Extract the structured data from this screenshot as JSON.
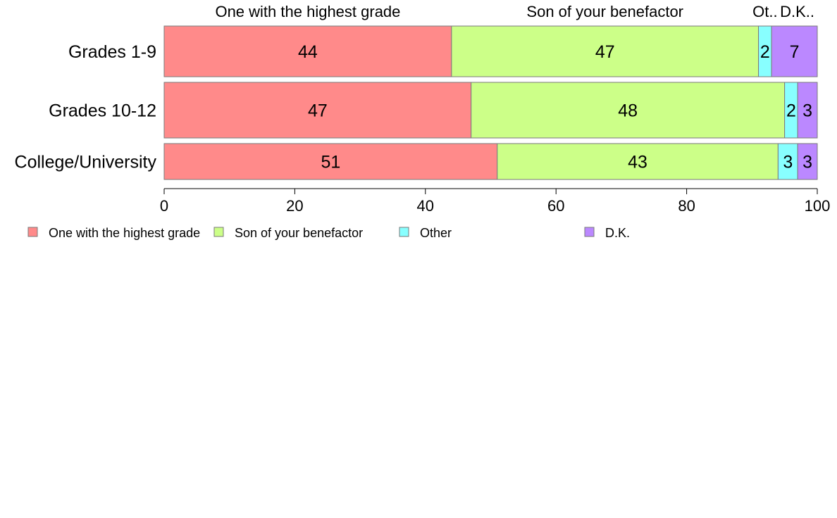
{
  "chart_data": {
    "type": "bar",
    "orientation": "horizontal",
    "stacked": true,
    "categories": [
      "Grades 1-9",
      "Grades 10-12",
      "College/University"
    ],
    "series": [
      {
        "name": "One with the highest grade",
        "top_label": "One with the highest grade",
        "color": "#FF8A8A",
        "values": [
          44,
          47,
          51
        ]
      },
      {
        "name": "Son of your benefactor",
        "top_label": "Son of your benefactor",
        "color": "#CCFF88",
        "values": [
          47,
          48,
          43
        ]
      },
      {
        "name": "Other",
        "top_label": "Ot..",
        "color": "#88FFFF",
        "values": [
          2,
          2,
          3
        ]
      },
      {
        "name": "D.K.",
        "top_label": "D.K..",
        "color": "#BB88FF",
        "values": [
          7,
          3,
          3
        ]
      }
    ],
    "xlim": [
      0,
      100
    ],
    "xticks": [
      "0",
      "20",
      "40",
      "60",
      "80",
      "100"
    ],
    "grid": false,
    "legend_position": "bottom",
    "bar_border_color": "#7a7a7a"
  }
}
